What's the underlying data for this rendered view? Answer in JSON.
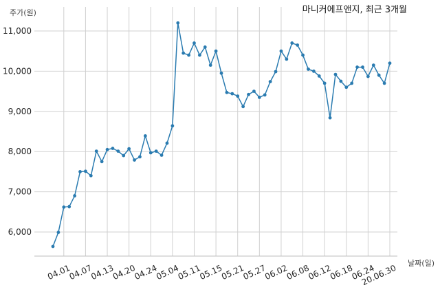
{
  "chart_data": {
    "type": "line",
    "title": "마니커에프앤지, 최근 3개월",
    "xlabel": "날짜(일)",
    "ylabel": "주가(원)",
    "ylim": [
      5400,
      11600
    ],
    "yticks": [
      6000,
      7000,
      8000,
      9000,
      10000,
      11000
    ],
    "ytick_labels": [
      "6,000",
      "7,000",
      "8,000",
      "9,000",
      "10,000",
      "11,000"
    ],
    "xtick_labels": [
      "04.01",
      "04.07",
      "04.13",
      "04.20",
      "04.24",
      "05.04",
      "05.11",
      "05.15",
      "05.21",
      "05.27",
      "06.02",
      "06.08",
      "06.12",
      "06.18",
      "06.24",
      "20.06.30"
    ],
    "xtick_indices": [
      2,
      6,
      10,
      14,
      18,
      22,
      26,
      30,
      34,
      38,
      42,
      46,
      50,
      54,
      58,
      62
    ],
    "grid": true,
    "line_color": "#2a7bb0",
    "series": [
      {
        "values": [
          5640,
          5990,
          6620,
          6630,
          6900,
          7500,
          7510,
          7400,
          8010,
          7750,
          8050,
          8080,
          8010,
          7900,
          8070,
          7790,
          7870,
          8390,
          7970,
          8010,
          7910,
          8210,
          8640,
          11200,
          10450,
          10400,
          10700,
          10400,
          10600,
          10150,
          10500,
          9950,
          9470,
          9440,
          9380,
          9120,
          9420,
          9500,
          9350,
          9410,
          9740,
          9990,
          10500,
          10300,
          10700,
          10650,
          10400,
          10050,
          10000,
          9880,
          9700,
          8840,
          9920,
          9750,
          9600,
          9700,
          10100,
          10100,
          9870,
          10150,
          9900,
          9700,
          10200
        ]
      }
    ]
  }
}
